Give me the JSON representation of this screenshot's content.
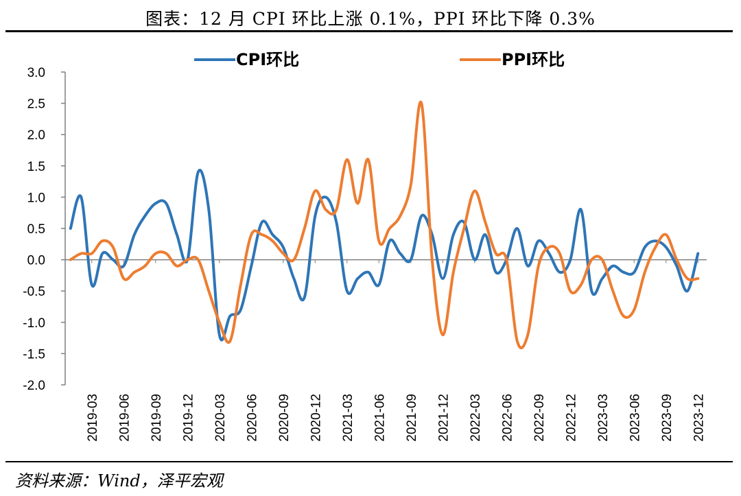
{
  "header": {
    "title": "图表：12 月 CPI 环比上涨 0.1%，PPI 环比下降 0.3%"
  },
  "footer": {
    "source": "资料来源：Wind，泽平宏观"
  },
  "colors": {
    "cpi": "#2E75B6",
    "ppi": "#ED7D31",
    "axis": "#7F7F7F"
  },
  "chart_data": {
    "type": "line",
    "title": "",
    "xlabel": "",
    "ylabel": "",
    "ylim": [
      -2.0,
      3.0
    ],
    "y_ticks": [
      "3.0",
      "2.5",
      "2.0",
      "1.5",
      "1.0",
      "0.5",
      "0.0",
      "-0.5",
      "-1.0",
      "-1.5",
      "-2.0"
    ],
    "x_tick_labels": [
      "2019-03",
      "2019-06",
      "2019-09",
      "2019-12",
      "2020-03",
      "2020-06",
      "2020-09",
      "2020-12",
      "2021-03",
      "2021-06",
      "2021-09",
      "2021-12",
      "2022-03",
      "2022-06",
      "2022-09",
      "2022-12",
      "2023-03",
      "2023-06",
      "2023-09",
      "2023-12"
    ],
    "legend_position": "top",
    "grid": false,
    "x": [
      "2019-01",
      "2019-02",
      "2019-03",
      "2019-04",
      "2019-05",
      "2019-06",
      "2019-07",
      "2019-08",
      "2019-09",
      "2019-10",
      "2019-11",
      "2019-12",
      "2020-01",
      "2020-02",
      "2020-03",
      "2020-04",
      "2020-05",
      "2020-06",
      "2020-07",
      "2020-08",
      "2020-09",
      "2020-10",
      "2020-11",
      "2020-12",
      "2021-01",
      "2021-02",
      "2021-03",
      "2021-04",
      "2021-05",
      "2021-06",
      "2021-07",
      "2021-08",
      "2021-09",
      "2021-10",
      "2021-11",
      "2021-12",
      "2022-01",
      "2022-02",
      "2022-03",
      "2022-04",
      "2022-05",
      "2022-06",
      "2022-07",
      "2022-08",
      "2022-09",
      "2022-10",
      "2022-11",
      "2022-12",
      "2023-01",
      "2023-02",
      "2023-03",
      "2023-04",
      "2023-05",
      "2023-06",
      "2023-07",
      "2023-08",
      "2023-09",
      "2023-10",
      "2023-11",
      "2023-12"
    ],
    "series": [
      {
        "name": "CPI环比",
        "values": [
          0.5,
          1.0,
          -0.4,
          0.1,
          0.0,
          -0.1,
          0.4,
          0.7,
          0.9,
          0.9,
          0.4,
          0.0,
          1.4,
          0.8,
          -1.2,
          -0.9,
          -0.8,
          -0.1,
          0.6,
          0.4,
          0.2,
          -0.3,
          -0.6,
          0.7,
          1.0,
          0.6,
          -0.5,
          -0.3,
          -0.2,
          -0.4,
          0.3,
          0.1,
          0.0,
          0.7,
          0.4,
          -0.3,
          0.4,
          0.6,
          0.0,
          0.4,
          -0.2,
          0.0,
          0.5,
          -0.1,
          0.3,
          0.1,
          -0.2,
          0.0,
          0.8,
          -0.5,
          -0.3,
          -0.1,
          -0.2,
          -0.2,
          0.2,
          0.3,
          0.2,
          -0.1,
          -0.5,
          0.1
        ]
      },
      {
        "name": "PPI环比",
        "values": [
          0.0,
          0.1,
          0.1,
          0.3,
          0.2,
          -0.3,
          -0.2,
          -0.1,
          0.1,
          0.1,
          -0.1,
          0.0,
          0.0,
          -0.5,
          -1.0,
          -1.3,
          -0.4,
          0.4,
          0.4,
          0.3,
          0.1,
          0.0,
          0.5,
          1.1,
          0.8,
          0.8,
          1.6,
          0.9,
          1.6,
          0.3,
          0.5,
          0.7,
          1.2,
          2.5,
          0.0,
          -1.2,
          -0.2,
          0.5,
          1.1,
          0.6,
          0.1,
          0.0,
          -1.3,
          -1.2,
          -0.1,
          0.2,
          0.1,
          -0.5,
          -0.4,
          0.0,
          0.0,
          -0.5,
          -0.9,
          -0.8,
          -0.2,
          0.2,
          0.4,
          0.0,
          -0.3,
          -0.3
        ]
      }
    ]
  }
}
